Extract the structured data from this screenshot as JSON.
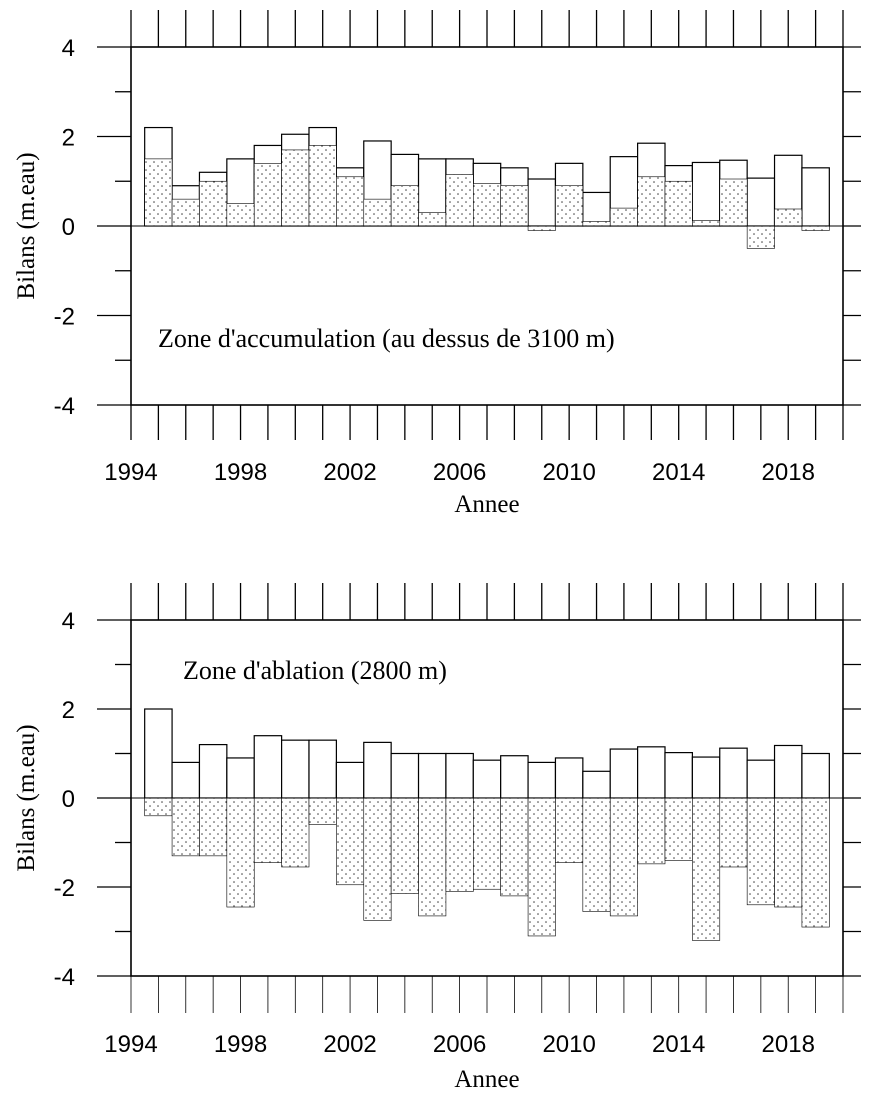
{
  "chart_data": [
    {
      "type": "bar",
      "title": "",
      "annotation": "Zone d'accumulation (au dessus de 3100 m)",
      "xlabel": "Annee",
      "ylabel": "Bilans (m.eau)",
      "ylim": [
        -4,
        4
      ],
      "yticks": [
        "-4",
        "-2",
        "0",
        "2",
        "4"
      ],
      "xlim": [
        1994,
        2020
      ],
      "xticks": [
        "1994",
        "1998",
        "2002",
        "2006",
        "2010",
        "2014",
        "2018"
      ],
      "x": [
        1995,
        1996,
        1997,
        1998,
        1999,
        2000,
        2001,
        2002,
        2003,
        2004,
        2005,
        2006,
        2007,
        2008,
        2009,
        2010,
        2011,
        2012,
        2013,
        2014,
        2015,
        2016,
        2017,
        2018,
        2019
      ],
      "series": [
        {
          "fill": "open",
          "values": [
            2.2,
            0.9,
            1.2,
            1.5,
            1.8,
            2.05,
            2.2,
            1.3,
            1.9,
            1.6,
            1.5,
            1.5,
            1.4,
            1.3,
            1.05,
            1.4,
            0.75,
            1.55,
            1.85,
            1.35,
            1.42,
            1.47,
            1.07,
            1.58,
            1.3
          ]
        },
        {
          "fill": "dotted",
          "values": [
            1.5,
            0.6,
            1.0,
            0.5,
            1.4,
            1.7,
            1.8,
            1.1,
            0.6,
            0.9,
            0.3,
            1.15,
            0.95,
            0.9,
            -0.1,
            0.9,
            0.1,
            0.4,
            1.1,
            1.0,
            0.12,
            1.05,
            -0.5,
            0.38,
            -0.1
          ]
        }
      ]
    },
    {
      "type": "bar",
      "title": "",
      "annotation": "Zone d'ablation (2800 m)",
      "xlabel": "Annee",
      "ylabel": "Bilans (m.eau)",
      "ylim": [
        -4,
        4
      ],
      "yticks": [
        "-4",
        "-2",
        "0",
        "2",
        "4"
      ],
      "xlim": [
        1994,
        2020
      ],
      "xticks": [
        "1994",
        "1998",
        "2002",
        "2006",
        "2010",
        "2014",
        "2018"
      ],
      "x": [
        1995,
        1996,
        1997,
        1998,
        1999,
        2000,
        2001,
        2002,
        2003,
        2004,
        2005,
        2006,
        2007,
        2008,
        2009,
        2010,
        2011,
        2012,
        2013,
        2014,
        2015,
        2016,
        2017,
        2018,
        2019
      ],
      "series": [
        {
          "fill": "open",
          "values": [
            2.0,
            0.8,
            1.2,
            0.9,
            1.4,
            1.3,
            1.3,
            0.8,
            1.25,
            1.0,
            1.0,
            1.0,
            0.85,
            0.95,
            0.8,
            0.9,
            0.6,
            1.1,
            1.15,
            1.02,
            0.92,
            1.12,
            0.85,
            1.18,
            1.0
          ]
        },
        {
          "fill": "dotted",
          "values": [
            -0.4,
            -1.3,
            -1.3,
            -2.45,
            -1.45,
            -1.55,
            -0.6,
            -1.95,
            -2.75,
            -2.15,
            -2.65,
            -2.1,
            -2.05,
            -2.2,
            -3.1,
            -1.45,
            -2.55,
            -2.65,
            -1.48,
            -1.4,
            -3.2,
            -1.55,
            -2.4,
            -2.45,
            -2.9
          ]
        }
      ]
    }
  ]
}
